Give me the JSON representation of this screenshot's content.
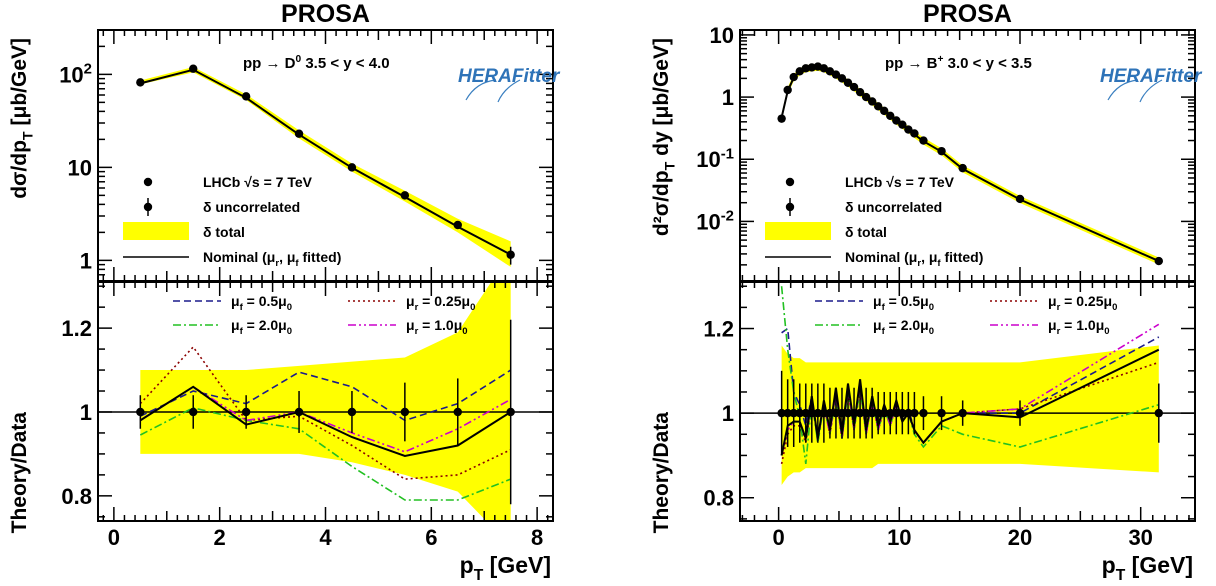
{
  "figure": {
    "left_title": "PROSA",
    "right_title": "PROSA"
  },
  "colors": {
    "band": "#ffff00",
    "nominal": "#000000",
    "muf_05": "#1a1a8c",
    "muf_20": "#22c022",
    "mur_025": "#8b0000",
    "mur_10": "#cc00cc"
  },
  "logo": {
    "text": "HERAFitter"
  },
  "chart_data": [
    {
      "type": "line",
      "panel": "left-top",
      "title": "PROSA",
      "annotation": "pp → D⁰   3.5 < y < 4.0",
      "xlabel": "",
      "ylabel": "dσ/dp_T [μb/GeV]",
      "yscale": "log",
      "xlim": [
        -0.3,
        8.3
      ],
      "ylim": [
        0.6,
        300
      ],
      "yticks": [
        1,
        10,
        100
      ],
      "yticklabels": [
        "1",
        "10",
        "10²"
      ],
      "x": [
        0.5,
        1.5,
        2.5,
        3.5,
        4.5,
        5.5,
        6.5,
        7.5
      ],
      "data": [
        82,
        115,
        58,
        23,
        10,
        5.0,
        2.4,
        1.15
      ],
      "data_err": [
        3,
        4,
        2,
        1,
        0.4,
        0.2,
        0.15,
        0.25
      ],
      "nominal": [
        80,
        112,
        56,
        22.5,
        9.9,
        4.8,
        2.3,
        1.15
      ],
      "band_low": [
        78,
        105,
        53,
        20.5,
        9.0,
        4.3,
        2.0,
        0.85
      ],
      "band_high": [
        86,
        120,
        61,
        25,
        11,
        5.6,
        2.8,
        1.6
      ],
      "legend": {
        "placement": "bottom-left",
        "entries": [
          "LHCb  √s = 7 TeV",
          "δ uncorrelated",
          "δ total",
          "Nominal (μ_r,  μ_f fitted)"
        ]
      }
    },
    {
      "type": "line",
      "panel": "left-bottom",
      "xlabel": "p_T [GeV]",
      "ylabel": "Theory/Data",
      "xlim": [
        -0.3,
        8.3
      ],
      "ylim": [
        0.74,
        1.31
      ],
      "xticks": [
        0,
        2,
        4,
        6,
        8
      ],
      "yticks": [
        0.8,
        1,
        1.2
      ],
      "x": [
        0.5,
        1.5,
        2.5,
        3.5,
        4.5,
        5.5,
        6.5,
        7.5
      ],
      "data_err": [
        0.04,
        0.04,
        0.04,
        0.05,
        0.05,
        0.07,
        0.08,
        0.22
      ],
      "band_low": [
        0.9,
        0.9,
        0.9,
        0.9,
        0.88,
        0.85,
        0.81,
        0.68
      ],
      "band_high": [
        1.1,
        1.1,
        1.1,
        1.11,
        1.12,
        1.13,
        1.19,
        1.38
      ],
      "series": [
        {
          "name": "μ_f = 0.5μ_0",
          "style": "dashed",
          "values": [
            0.99,
            1.05,
            1.02,
            1.095,
            1.06,
            0.98,
            1.02,
            1.1
          ]
        },
        {
          "name": "μ_r = 0.25μ_0",
          "style": "dotted",
          "values": [
            1.02,
            1.155,
            0.98,
            0.99,
            0.92,
            0.84,
            0.85,
            0.91
          ]
        },
        {
          "name": "μ_f = 2.0μ_0",
          "style": "dashdot",
          "values": [
            0.945,
            1.01,
            0.98,
            0.96,
            0.87,
            0.79,
            0.79,
            0.84
          ]
        },
        {
          "name": "μ_r = 1.0μ_0",
          "style": "dashdotdot",
          "values": [
            0.98,
            1.06,
            0.98,
            1.0,
            0.95,
            0.905,
            0.96,
            1.03
          ]
        },
        {
          "name": "Nominal",
          "style": "solid",
          "values": [
            0.98,
            1.06,
            0.97,
            1.0,
            0.94,
            0.895,
            0.92,
            1.0
          ]
        }
      ],
      "legend": {
        "placement": "top",
        "entries": [
          "μ_f = 0.5μ_0",
          "μ_r = 0.25μ_0",
          "μ_f = 2.0μ_0",
          "μ_r = 1.0μ_0"
        ]
      }
    },
    {
      "type": "line",
      "panel": "right-top",
      "title": "PROSA",
      "annotation": "pp → B⁺   3.0 < y < 3.5",
      "xlabel": "",
      "ylabel": "d²σ/dp_T dy [μb/GeV]",
      "yscale": "log",
      "xlim": [
        -3.2,
        34.5
      ],
      "ylim": [
        0.0011,
        12
      ],
      "yticks": [
        0.01,
        0.1,
        1,
        10
      ],
      "yticklabels": [
        "10⁻²",
        "10⁻¹",
        "1",
        "10"
      ],
      "x": [
        0.25,
        0.75,
        1.25,
        1.75,
        2.25,
        2.75,
        3.25,
        3.75,
        4.25,
        4.75,
        5.25,
        5.75,
        6.25,
        6.75,
        7.25,
        7.75,
        8.25,
        8.75,
        9.25,
        9.75,
        10.25,
        10.75,
        11.25,
        12.0,
        13.5,
        15.25,
        20.0,
        31.5
      ],
      "data": [
        0.45,
        1.3,
        2.1,
        2.6,
        2.9,
        3.0,
        3.1,
        2.9,
        2.6,
        2.3,
        2.0,
        1.7,
        1.45,
        1.2,
        1.0,
        0.85,
        0.71,
        0.6,
        0.5,
        0.42,
        0.36,
        0.3,
        0.26,
        0.2,
        0.135,
        0.072,
        0.023,
        0.0023
      ],
      "nominal": [
        0.47,
        1.25,
        2.05,
        2.55,
        2.85,
        2.95,
        3.0,
        2.85,
        2.55,
        2.25,
        1.95,
        1.68,
        1.42,
        1.18,
        0.99,
        0.84,
        0.7,
        0.59,
        0.49,
        0.41,
        0.35,
        0.3,
        0.25,
        0.195,
        0.132,
        0.07,
        0.0225,
        0.0023
      ],
      "band_low_ratio": 0.88,
      "band_high_ratio": 1.14,
      "legend": {
        "placement": "bottom-left",
        "entries": [
          "LHCb  √s = 7 TeV",
          "δ uncorrelated",
          "δ total",
          "Nominal (μ_r,  μ_f fitted)"
        ]
      }
    },
    {
      "type": "line",
      "panel": "right-bottom",
      "xlabel": "p_T [GeV]",
      "ylabel": "Theory/Data",
      "xlim": [
        -3.2,
        34.5
      ],
      "ylim": [
        0.745,
        1.31
      ],
      "xticks": [
        0,
        10,
        20,
        30
      ],
      "yticks": [
        0.8,
        1,
        1.2
      ],
      "x": [
        0.25,
        0.75,
        1.25,
        1.75,
        2.25,
        2.75,
        3.25,
        3.75,
        4.25,
        4.75,
        5.25,
        5.75,
        6.25,
        6.75,
        7.25,
        7.75,
        8.25,
        8.75,
        9.25,
        9.75,
        10.25,
        10.75,
        11.25,
        12.0,
        13.5,
        15.25,
        20.0,
        31.5
      ],
      "data_err": [
        0.1,
        0.08,
        0.08,
        0.07,
        0.07,
        0.07,
        0.07,
        0.07,
        0.06,
        0.06,
        0.06,
        0.06,
        0.06,
        0.06,
        0.06,
        0.06,
        0.05,
        0.05,
        0.05,
        0.05,
        0.05,
        0.05,
        0.05,
        0.04,
        0.04,
        0.03,
        0.03,
        0.07
      ],
      "band_low": [
        0.83,
        0.85,
        0.86,
        0.86,
        0.87,
        0.87,
        0.87,
        0.87,
        0.87,
        0.87,
        0.87,
        0.87,
        0.87,
        0.87,
        0.87,
        0.87,
        0.88,
        0.88,
        0.88,
        0.88,
        0.88,
        0.88,
        0.88,
        0.88,
        0.88,
        0.88,
        0.88,
        0.86
      ],
      "band_high": [
        1.16,
        1.14,
        1.13,
        1.13,
        1.12,
        1.12,
        1.12,
        1.12,
        1.12,
        1.12,
        1.12,
        1.12,
        1.12,
        1.12,
        1.12,
        1.12,
        1.12,
        1.12,
        1.12,
        1.12,
        1.12,
        1.12,
        1.12,
        1.12,
        1.12,
        1.12,
        1.12,
        1.16
      ],
      "series": [
        {
          "name": "μ_f = 0.5μ_0",
          "style": "dashed",
          "values": [
            1.19,
            1.2,
            1.05,
            1.02,
            0.97,
            1.04,
            0.93,
            1.03,
            0.96,
            1.05,
            0.94,
            1.06,
            0.97,
            1.07,
            0.95,
            1.04,
            0.96,
            1.02,
            0.97,
            1.03,
            0.98,
            1.01,
            0.96,
            0.93,
            0.98,
            1.0,
            1.0,
            1.18
          ]
        },
        {
          "name": "μ_r = 0.25μ_0",
          "style": "dotted",
          "values": [
            0.88,
            0.95,
            0.97,
            0.97,
            0.93,
            1.03,
            0.94,
            1.02,
            0.95,
            1.04,
            0.94,
            1.05,
            0.96,
            1.06,
            0.95,
            1.03,
            0.96,
            1.01,
            0.97,
            1.02,
            0.98,
            1.0,
            0.96,
            0.93,
            0.98,
            1.0,
            1.01,
            1.12
          ]
        },
        {
          "name": "μ_f = 2.0μ_0",
          "style": "dashdot",
          "values": [
            1.3,
            1.15,
            1.05,
            0.99,
            0.88,
            1.03,
            0.93,
            1.02,
            0.95,
            1.04,
            0.94,
            1.05,
            0.96,
            1.06,
            0.95,
            1.03,
            0.96,
            1.01,
            0.97,
            1.02,
            0.98,
            1.0,
            0.95,
            0.92,
            0.97,
            0.95,
            0.92,
            1.02
          ]
        },
        {
          "name": "μ_r = 1.0μ_0",
          "style": "dashdotdot",
          "values": [
            0.9,
            0.96,
            0.98,
            0.98,
            0.94,
            1.03,
            0.94,
            1.02,
            0.95,
            1.05,
            0.94,
            1.06,
            0.96,
            1.07,
            0.95,
            1.03,
            0.96,
            1.02,
            0.97,
            1.02,
            0.98,
            1.0,
            0.96,
            0.93,
            0.98,
            1.0,
            1.01,
            1.21
          ]
        },
        {
          "name": "Nominal",
          "style": "solid",
          "values": [
            0.9,
            0.97,
            0.98,
            0.98,
            0.94,
            1.04,
            0.94,
            1.03,
            0.96,
            1.06,
            0.95,
            1.07,
            0.97,
            1.08,
            0.96,
            1.04,
            0.97,
            1.02,
            0.98,
            1.03,
            0.98,
            1.0,
            0.96,
            0.93,
            0.98,
            1.0,
            0.99,
            1.15
          ]
        }
      ],
      "legend": {
        "placement": "top",
        "entries": [
          "μ_f = 0.5μ_0",
          "μ_r = 0.25μ_0",
          "μ_f = 2.0μ_0",
          "μ_r = 1.0μ_0"
        ]
      }
    }
  ]
}
